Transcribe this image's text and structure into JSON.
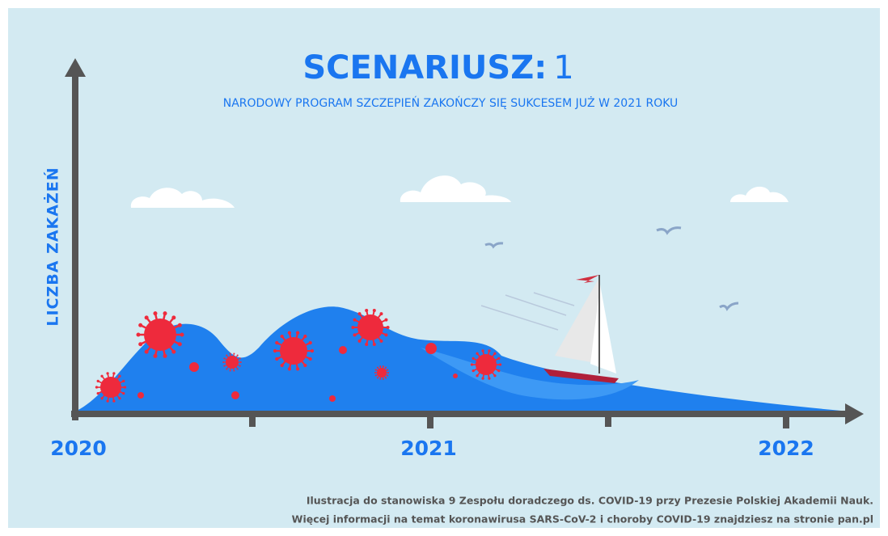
{
  "header": {
    "title_main": "SCENARIUSZ:",
    "title_number": "1",
    "subtitle": "NARODOWY PROGRAM SZCZEPIEŃ ZAKOŃCZY SIĘ SUKCESEM JUŻ W 2021 ROKU"
  },
  "axes": {
    "y_label": "LICZBA ZAKAŻEŃ",
    "x_labels": [
      "2020",
      "2021",
      "2022"
    ]
  },
  "footer": {
    "lines": [
      "Ilustracja do stanowiska 9 Zespołu doradczego ds. COVID-19 przy Prezesie Polskiej Akademii Nauk.",
      "Więcej informacji na temat koronawirusa SARS-CoV-2 i choroby COVID-19 znajdziesz na stronie pan.pl"
    ]
  }
}
